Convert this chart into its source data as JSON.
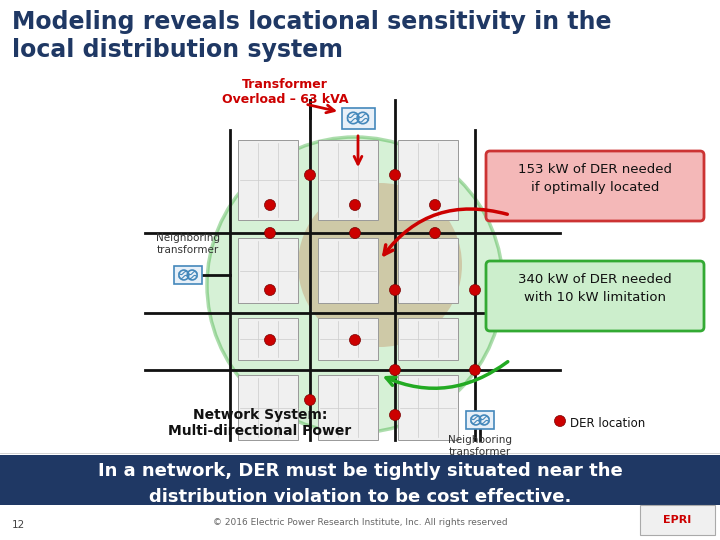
{
  "title_line1": "Modeling reveals locational sensitivity in the",
  "title_line2": "local distribution system",
  "title_color": "#1f3864",
  "title_fontsize": 17,
  "background_color": "#ffffff",
  "transformer_overload_label": "Transformer\nOverload – 63 kVA",
  "transformer_overload_color": "#cc0000",
  "box1_text": "153 kW of DER needed\nif optimally located",
  "box1_bg": "#f4b8b8",
  "box1_border": "#cc3333",
  "box2_text": "340 kW of DER needed\nwith 10 kW limitation",
  "box2_bg": "#cceecc",
  "box2_border": "#33aa33",
  "network_label": "Network System:\nMulti-directional Power",
  "neighbor_label": "Neighboring\ntransformer",
  "der_label": "DER location",
  "der_color": "#cc0000",
  "bottom_banner_text": "In a network, DER must be tightly situated near the\ndistribution violation to be cost effective.",
  "bottom_banner_bg": "#1f3864",
  "bottom_banner_color": "#ffffff",
  "footer_text": "12",
  "copyright_text": "© 2016 Electric Power Research Institute, Inc. All rights reserved",
  "circle_color": "#99dd99",
  "circle_alpha": 0.4,
  "grid_color": "#111111",
  "building_color": "#f0f0f0",
  "building_outline": "#999999",
  "brown_circle_color": "#c8a882",
  "brown_circle_alpha": 0.55,
  "red_arrow_color": "#cc0000",
  "green_arrow_color": "#22aa22"
}
